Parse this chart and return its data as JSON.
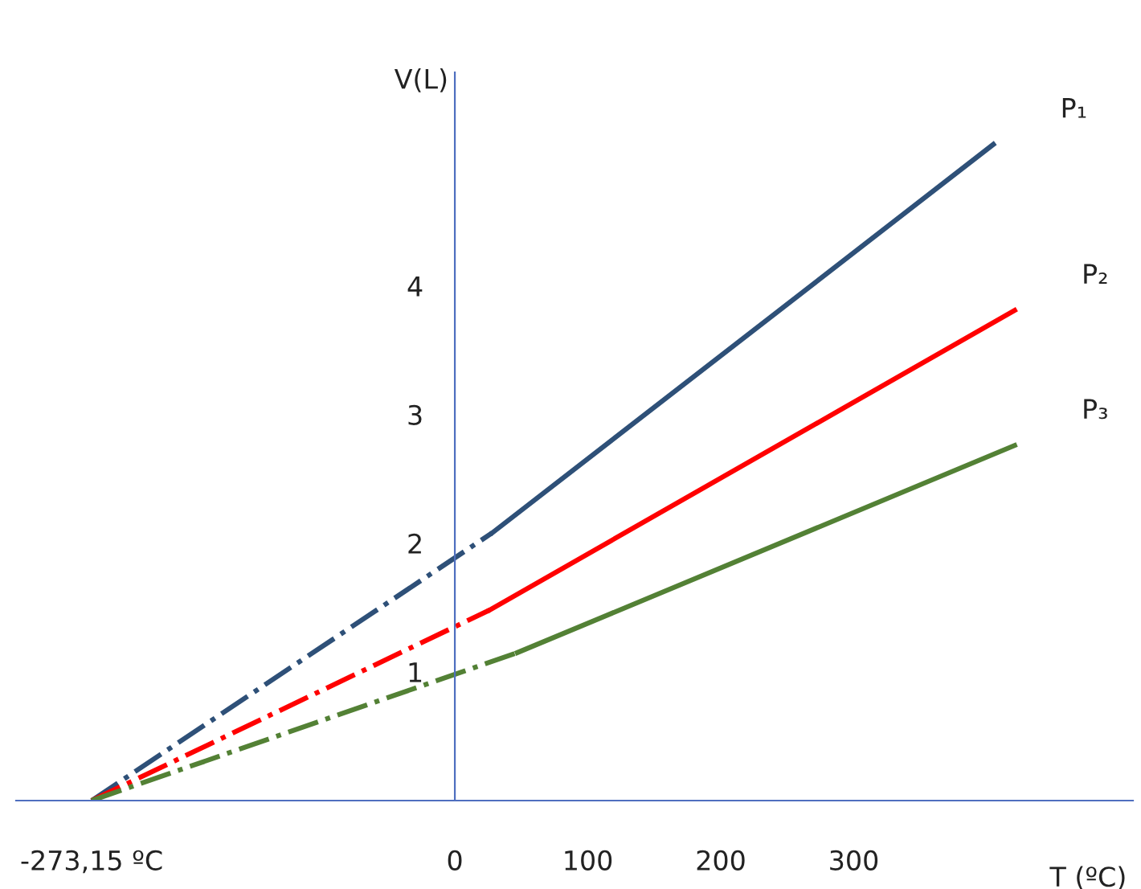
{
  "chart_data": {
    "type": "line",
    "xlabel": "T (ºC)",
    "ylabel": "V(L)",
    "xlim": [
      -330,
      510
    ],
    "ylim": [
      0,
      5.66
    ],
    "xticks": [
      {
        "value": -273.15,
        "label": "-273,15 ºC"
      },
      0,
      100,
      200,
      300
    ],
    "yticks": [
      1,
      2,
      3,
      4
    ],
    "grid": false,
    "legend": false,
    "marker": "none",
    "series": [
      {
        "color": "#2e5078",
        "line_style": "dashed",
        "x": [
          -273.15,
          28
        ],
        "values": [
          0,
          2.08
        ]
      },
      {
        "name": "P₁",
        "color": "#2e5078",
        "line_style": "solid",
        "x": [
          28,
          405
        ],
        "values": [
          2.08,
          5.1
        ]
      },
      {
        "color": "#ff0000",
        "line_style": "dashed",
        "x": [
          -273.15,
          26
        ],
        "values": [
          0,
          1.48
        ]
      },
      {
        "name": "P₂",
        "color": "#ff0000",
        "line_style": "solid",
        "x": [
          26,
          421
        ],
        "values": [
          1.48,
          3.81
        ]
      },
      {
        "color": "#538135",
        "line_style": "dashed",
        "x": [
          -273.15,
          47
        ],
        "values": [
          0,
          1.15
        ]
      },
      {
        "name": "P₃",
        "color": "#538135",
        "line_style": "solid",
        "x": [
          47,
          421
        ],
        "values": [
          1.15,
          2.76
        ]
      }
    ]
  }
}
